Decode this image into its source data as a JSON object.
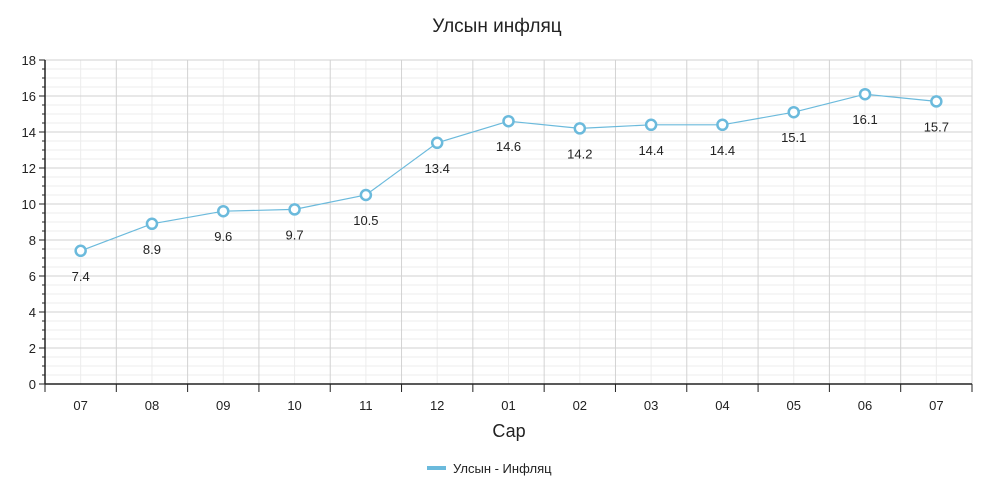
{
  "chart_data": {
    "type": "line",
    "title": "Улсын инфляц",
    "xlabel": "Сар",
    "ylabel": "",
    "categories": [
      "07",
      "08",
      "09",
      "10",
      "11",
      "12",
      "01",
      "02",
      "03",
      "04",
      "05",
      "06",
      "07"
    ],
    "series": [
      {
        "name": "Улсын - Инфляц",
        "values": [
          7.4,
          8.9,
          9.6,
          9.7,
          10.5,
          13.4,
          14.6,
          14.2,
          14.4,
          14.4,
          15.1,
          16.1,
          15.7
        ],
        "labels": [
          "7.4",
          "8.9",
          "9.6",
          "9.7",
          "10.5",
          "13.4",
          "14.6",
          "14.2",
          "14.4",
          "14.4",
          "15.1",
          "16.1",
          "15.7"
        ],
        "color": "#6bbadc"
      }
    ],
    "ylim": [
      0,
      18
    ],
    "yticks": [
      "0",
      "2",
      "4",
      "6",
      "8",
      "10",
      "12",
      "14",
      "16",
      "18"
    ],
    "grid": true,
    "legend_position": "bottom-center"
  },
  "colors": {
    "line": "#6bbadc",
    "marker_fill": "#ffffff",
    "major_grid": "#d2d2d2",
    "minor_grid": "#ececec",
    "axis": "#222222"
  }
}
